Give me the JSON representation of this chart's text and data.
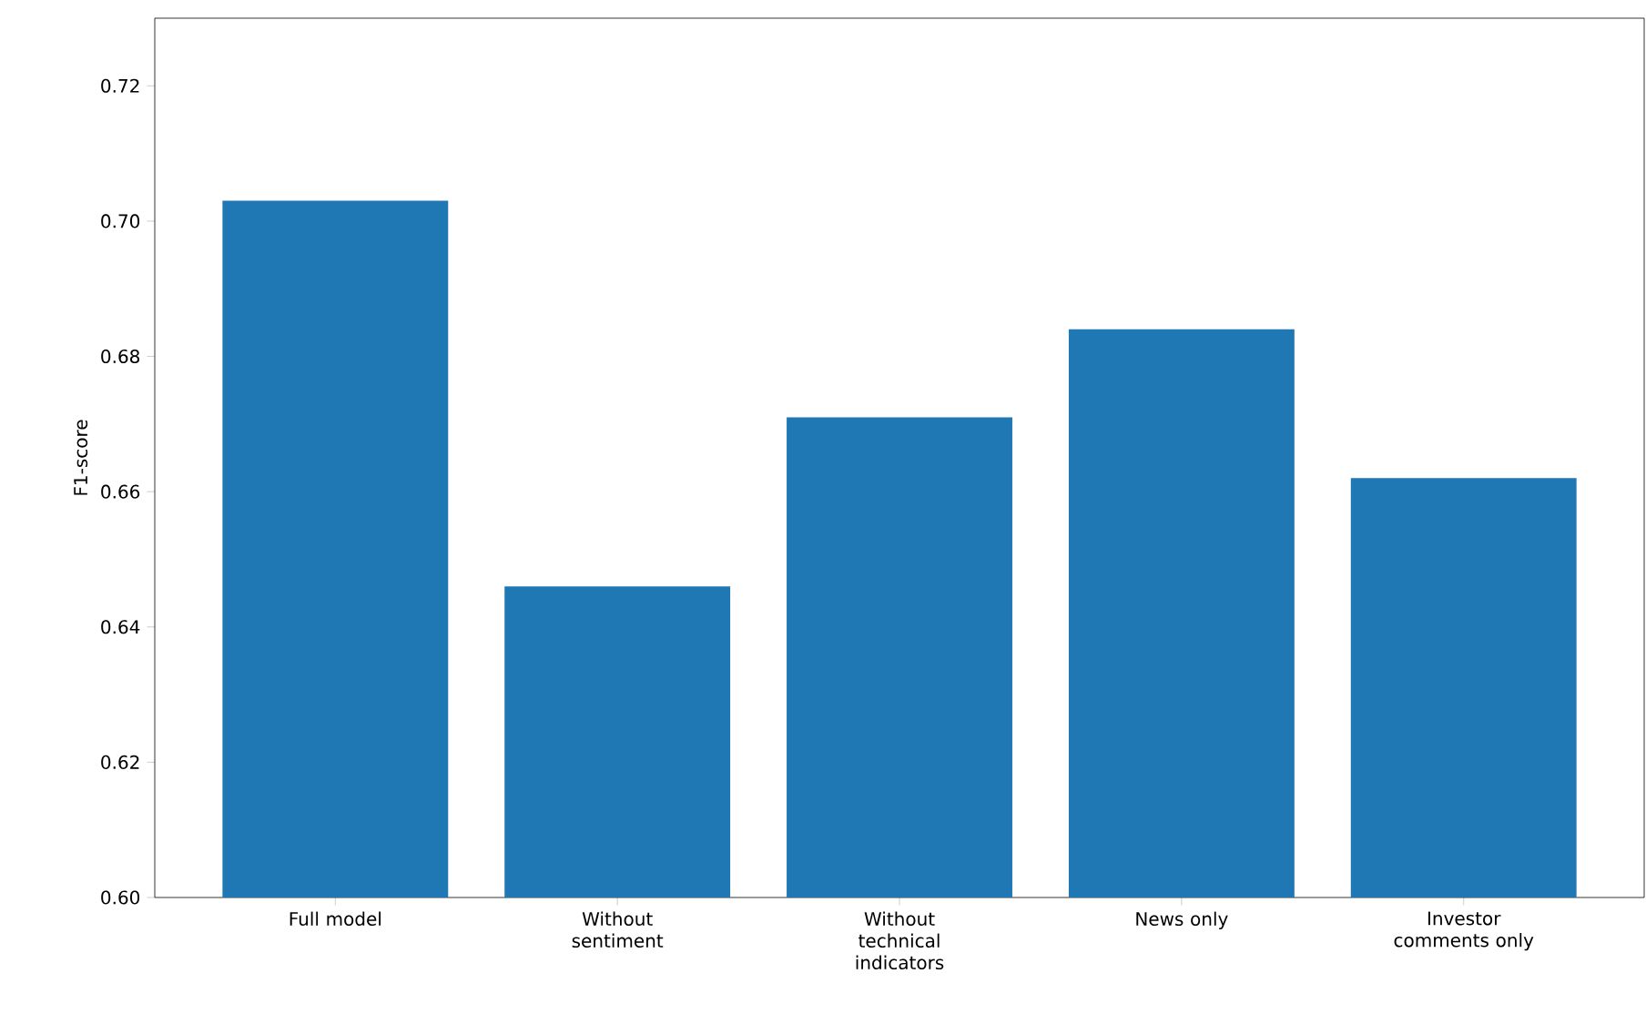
{
  "chart_data": {
    "type": "bar",
    "ylabel": "F1-score",
    "categories": [
      "Full model",
      "Without sentiment",
      "Without technical indicators",
      "News only",
      "Investor comments only"
    ],
    "values": [
      0.703,
      0.646,
      0.671,
      0.684,
      0.662
    ],
    "color": "#1f77b4",
    "ylim": [
      0.6,
      0.73
    ],
    "yticks": [
      {
        "value": 0.6,
        "label": "0.60"
      },
      {
        "value": 0.62,
        "label": "0.62"
      },
      {
        "value": 0.64,
        "label": "0.64"
      },
      {
        "value": 0.66,
        "label": "0.66"
      },
      {
        "value": 0.68,
        "label": "0.68"
      },
      {
        "value": 0.7,
        "label": "0.70"
      },
      {
        "value": 0.72,
        "label": "0.72"
      }
    ],
    "grid": false
  }
}
